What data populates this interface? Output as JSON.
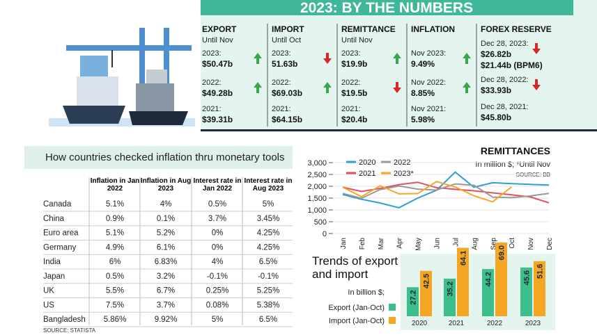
{
  "header": {
    "title": "2023: BY THE NUMBERS"
  },
  "stats": [
    {
      "name": "EXPORT",
      "period": "Until Nov",
      "rows": [
        {
          "label": "2023:",
          "values": [
            "$50.47b"
          ],
          "trend": "up"
        },
        {
          "label": "2022:",
          "values": [
            "$49.28b"
          ],
          "trend": "up"
        },
        {
          "label": "2021:",
          "values": [
            "$39.31b"
          ]
        }
      ]
    },
    {
      "name": "IMPORT",
      "period": "Until Oct",
      "rows": [
        {
          "label": "2023:",
          "values": [
            "51.63b"
          ],
          "trend": "down"
        },
        {
          "label": "2022:",
          "values": [
            "$69.03b"
          ],
          "trend": "up"
        },
        {
          "label": "2021:",
          "values": [
            "$64.15b"
          ]
        }
      ]
    },
    {
      "name": "REMITTANCE",
      "period": "Until Nov",
      "rows": [
        {
          "label": "2023:",
          "values": [
            "$19.9b"
          ],
          "trend": "up"
        },
        {
          "label": "2022:",
          "values": [
            "$19.5b"
          ],
          "trend": "down"
        },
        {
          "label": "2021:",
          "values": [
            "$20.4b"
          ]
        }
      ]
    },
    {
      "name": "INFLATION",
      "rows": [
        {
          "label": "Nov 2023:",
          "values": [
            "9.49%"
          ],
          "trend": "up"
        },
        {
          "label": "Nov 2022:",
          "values": [
            "8.85%"
          ],
          "trend": "up"
        },
        {
          "label": "Nov 2021:",
          "values": [
            "5.98%"
          ]
        }
      ]
    },
    {
      "name": "FOREX RESERVE",
      "rows": [
        {
          "label": "Dec 28, 2023:",
          "values": [
            "$26.82b",
            "$21.44b (BPM6)"
          ],
          "trend": "down"
        },
        {
          "label": "Dec 28, 2022:",
          "values": [
            "$33.93b"
          ],
          "trend": "down"
        },
        {
          "label": "Dec 28, 2021:",
          "values": [
            "$45.80b"
          ]
        }
      ]
    }
  ],
  "table": {
    "title": "How countries checked inflation thru monetary tools",
    "columns": [
      "Inflation in Jan 2022",
      "Inflation in Aug 2023",
      "Interest rate in Jan 2022",
      "Interest rate in Aug 2023"
    ],
    "rows": [
      [
        "Canada",
        "5.1%",
        "4%",
        "0.5%",
        "5%"
      ],
      [
        "China",
        "0.9%",
        "0.1%",
        "3.7%",
        "3.45%"
      ],
      [
        "Euro area",
        "5.1%",
        "5.2%",
        "0%",
        "4.25%"
      ],
      [
        "Germany",
        "4.9%",
        "6.1%",
        "0%",
        "4.25%"
      ],
      [
        "India",
        "6%",
        "6.83%",
        "4%",
        "6.5%"
      ],
      [
        "Japan",
        "0.5%",
        "3.2%",
        "-0.1%",
        "-0.1%"
      ],
      [
        "UK",
        "5.5%",
        "6.7%",
        "0.25%",
        "5.25%"
      ],
      [
        "US",
        "7.5%",
        "3.7%",
        "0.08%",
        "5.38%"
      ],
      [
        "Bangladesh",
        "5.86%",
        "9.92%",
        "5%",
        "6.5%"
      ]
    ],
    "source": "SOURCE: STATISTA"
  },
  "chart_data": [
    {
      "type": "line",
      "title": "REMITTANCES",
      "subtitle": "In million $; *Until Nov",
      "source": "SOURCE: BB",
      "categories": [
        "Jan",
        "Feb",
        "Mar",
        "Apr",
        "May",
        "Jun",
        "Jul",
        "Aug",
        "Sep",
        "Oct",
        "Nov",
        "Dec"
      ],
      "series": [
        {
          "name": "2020",
          "color": "#2a9fd8",
          "values": [
            1650,
            1450,
            1290,
            1090,
            1500,
            1830,
            2600,
            1960,
            2150,
            2110,
            2080,
            2050
          ]
        },
        {
          "name": "2021",
          "color": "#e0505e",
          "values": [
            1960,
            1780,
            1910,
            2070,
            2170,
            1940,
            1870,
            1810,
            1720,
            1640,
            1550,
            1300
          ]
        },
        {
          "name": "2022",
          "color": "#9a9a9a",
          "values": [
            1700,
            1490,
            1860,
            2010,
            1880,
            1840,
            2100,
            2040,
            1540,
            1520,
            1590,
            1700
          ]
        },
        {
          "name": "2023*",
          "color": "#f5a623",
          "values": [
            1960,
            1560,
            2020,
            1680,
            1690,
            2200,
            1970,
            1600,
            1340,
            1970,
            null,
            null
          ]
        }
      ],
      "ylim": [
        0,
        3000
      ],
      "yticks": [
        0,
        500,
        {
          "value": 1000,
          "label": "1,000"
        },
        {
          "value": 1500,
          "label": "1,500"
        },
        {
          "value": 2000,
          "label": "2,000"
        },
        {
          "value": 2500,
          "label": "2,500"
        },
        {
          "value": 3000,
          "label": "3,000"
        }
      ],
      "grid": true
    },
    {
      "type": "bar",
      "title": "Trends of export and import",
      "subtitle": "In billion $;",
      "categories": [
        "2020",
        "2021",
        "2022",
        "2023"
      ],
      "series": [
        {
          "name": "Export (Jan-Oct)",
          "color": "#3cbf8a",
          "values": [
            27.2,
            35.2,
            44.2,
            45.6
          ]
        },
        {
          "name": "Import (Jan-Oct)",
          "color": "#f5a623",
          "values": [
            42.5,
            64.1,
            69.0,
            51.6
          ],
          "value_labels": [
            "42.5",
            "64.1",
            "69.0",
            "51.6"
          ]
        }
      ]
    }
  ]
}
